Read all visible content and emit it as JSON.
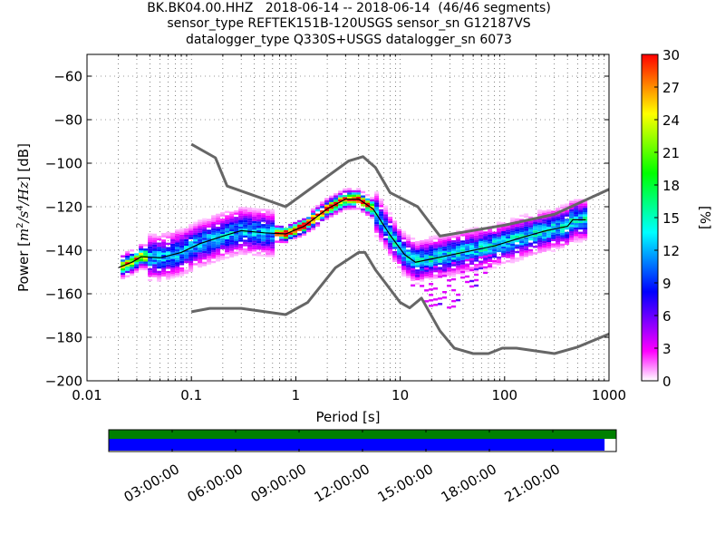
{
  "chart_data": {
    "type": "heatmap",
    "title_lines": [
      "BK.BK04.00.HHZ   2018-06-14 -- 2018-06-14  (46/46 segments)",
      "sensor_type REFTEK151B-120USGS sensor_sn G12187VS",
      "datalogger_type Q330S+USGS datalogger_sn 6073"
    ],
    "xlabel": "Period [s]",
    "ylabel": "Power [m²/s⁴/Hz] [dB]",
    "ylabel_parts": {
      "prefix": "Power [",
      "m": "m",
      "m_exp": "2",
      "s": "/s",
      "s_exp": "4",
      "hz": "/Hz",
      "suffix": "] [dB]"
    },
    "xscale": "log",
    "xlim": [
      0.01,
      1000
    ],
    "ylim": [
      -200,
      -50
    ],
    "xticks": [
      0.01,
      0.1,
      1,
      10,
      100,
      1000
    ],
    "xtick_labels": [
      "0.01",
      "0.1",
      "1",
      "10",
      "100",
      "1000"
    ],
    "yticks": [
      -200,
      -180,
      -160,
      -140,
      -120,
      -100,
      -80,
      -60
    ],
    "ytick_labels": [
      "−200",
      "−180",
      "−160",
      "−140",
      "−120",
      "−100",
      "−80",
      "−60"
    ],
    "grid": true,
    "colorbar": {
      "label": "[%]",
      "range": [
        0,
        30
      ],
      "ticks": [
        0,
        3,
        6,
        9,
        12,
        15,
        18,
        21,
        24,
        27,
        30
      ],
      "tick_labels": [
        "0",
        "3",
        "6",
        "9",
        "12",
        "15",
        "18",
        "21",
        "24",
        "27",
        "30"
      ],
      "colormap": [
        "#ffffff",
        "#ff00ff",
        "#8000ff",
        "#0000ff",
        "#0080ff",
        "#00ffff",
        "#00ff80",
        "#00ff00",
        "#80ff00",
        "#ffff00",
        "#ff8000",
        "#ff0000"
      ]
    },
    "noise_models": {
      "color": "#666666",
      "NHNM": [
        [
          0.1,
          -91.3
        ],
        [
          0.17,
          -97.5
        ],
        [
          0.22,
          -110.5
        ],
        [
          0.8,
          -120
        ],
        [
          3.2,
          -99
        ],
        [
          4.4,
          -97
        ],
        [
          5.8,
          -102
        ],
        [
          8.0,
          -113.5
        ],
        [
          14.7,
          -120
        ],
        [
          24,
          -133.5
        ],
        [
          100,
          -128.5
        ],
        [
          300,
          -123.5
        ],
        [
          1000,
          -112
        ]
      ],
      "NLNM": [
        [
          0.1,
          -168.3
        ],
        [
          0.15,
          -166.7
        ],
        [
          0.3,
          -166.7
        ],
        [
          0.8,
          -169.6
        ],
        [
          1.3,
          -164
        ],
        [
          2.4,
          -148
        ],
        [
          4.0,
          -141
        ],
        [
          4.6,
          -141
        ],
        [
          5.8,
          -149
        ],
        [
          10,
          -164
        ],
        [
          12.3,
          -166.5
        ],
        [
          16,
          -162
        ],
        [
          24,
          -177
        ],
        [
          33,
          -185
        ],
        [
          50,
          -187.5
        ],
        [
          70,
          -187.5
        ],
        [
          95,
          -185
        ],
        [
          130,
          -185
        ],
        [
          300,
          -187.5
        ],
        [
          500,
          -184.5
        ],
        [
          1000,
          -178.5
        ]
      ]
    },
    "mode_line": {
      "color": "#000000",
      "points": [
        [
          0.02,
          -148
        ],
        [
          0.027,
          -145.5
        ],
        [
          0.033,
          -143
        ],
        [
          0.05,
          -143.5
        ],
        [
          0.08,
          -141
        ],
        [
          0.12,
          -137
        ],
        [
          0.2,
          -133.5
        ],
        [
          0.3,
          -131
        ],
        [
          0.5,
          -132
        ],
        [
          0.8,
          -132.5
        ],
        [
          1.2,
          -129
        ],
        [
          2.0,
          -121
        ],
        [
          3.0,
          -116.5
        ],
        [
          4.0,
          -116.5
        ],
        [
          5.5,
          -121
        ],
        [
          8.0,
          -133
        ],
        [
          11,
          -142
        ],
        [
          14,
          -145.5
        ],
        [
          20,
          -144
        ],
        [
          40,
          -141
        ],
        [
          80,
          -138
        ],
        [
          150,
          -134
        ],
        [
          250,
          -131
        ],
        [
          400,
          -129
        ],
        [
          450,
          -126
        ],
        [
          600,
          -126
        ]
      ]
    },
    "pdf_band": {
      "description_periods": [
        0.02,
        600
      ],
      "spread_db": "varies",
      "max_percent": 30
    }
  },
  "timeline": {
    "tick_labels": [
      "03:00:00",
      "06:00:00",
      "09:00:00",
      "12:00:00",
      "15:00:00",
      "18:00:00",
      "21:00:00"
    ],
    "tick_hours": [
      3,
      6,
      9,
      12,
      15,
      18,
      21
    ],
    "span_hours": 24,
    "data_available_fraction": 1.0,
    "data_used_fraction": 0.977,
    "available_color": "#008000",
    "used_color": "#0000ff"
  }
}
